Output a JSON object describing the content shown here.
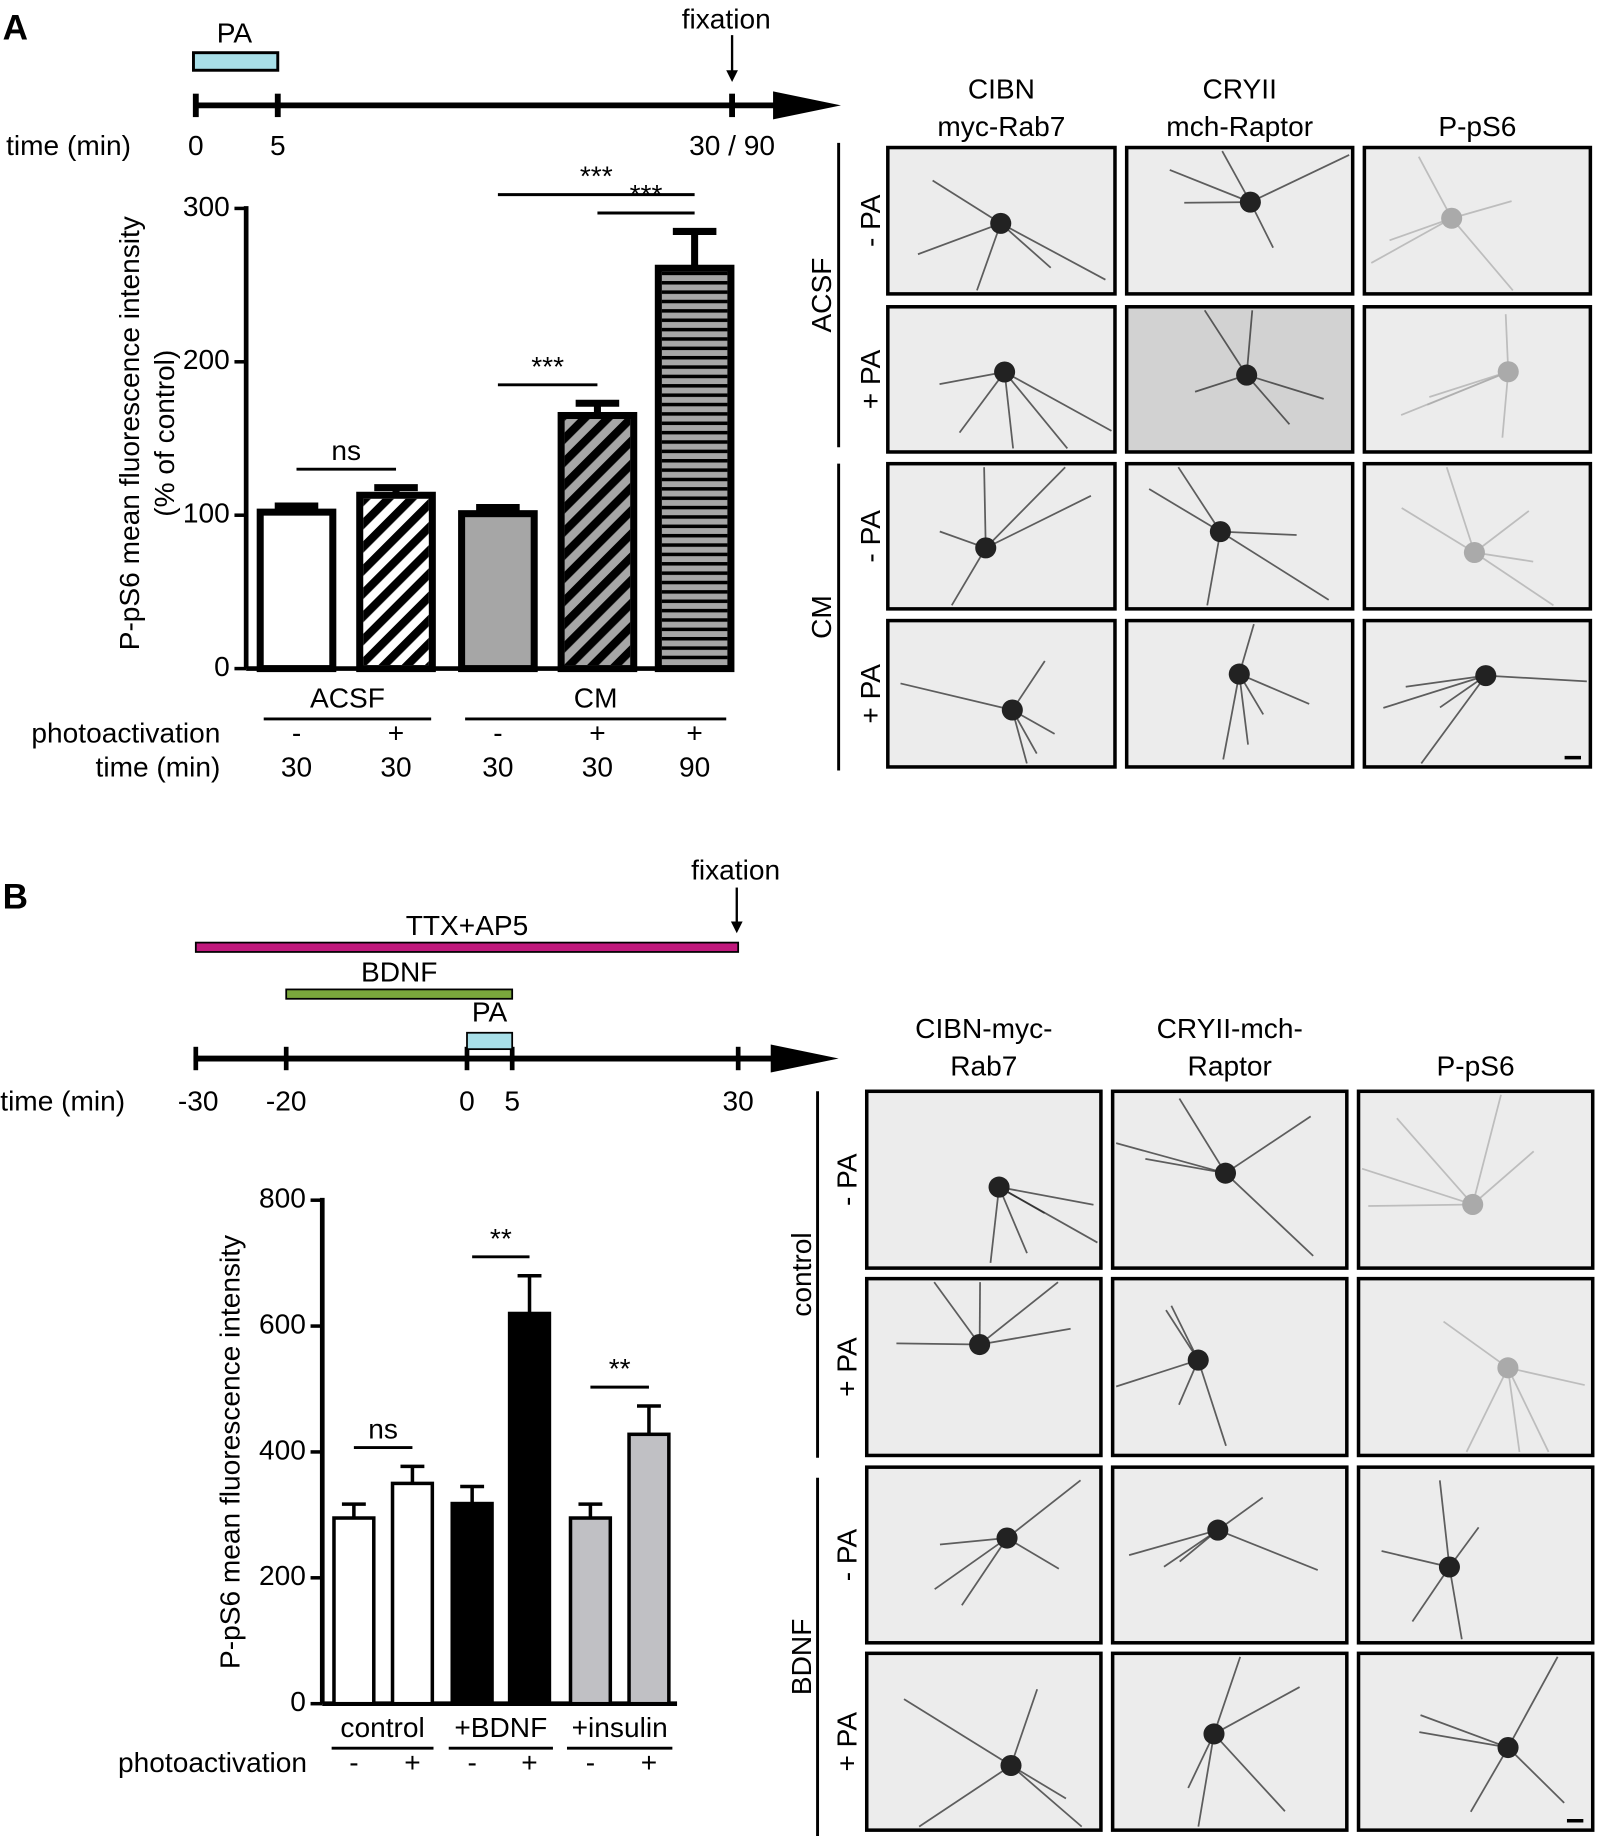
{
  "panel_labels": [
    "A",
    "B"
  ],
  "timelines": [
    {
      "axis_label": "time (min)",
      "ticks": [
        "0",
        "5",
        "30 / 90"
      ],
      "bars": [
        {
          "label": "PA",
          "color": "#a8dfe8"
        }
      ],
      "marker": "fixation"
    },
    {
      "axis_label": "time (min)",
      "ticks": [
        -30,
        -20,
        0,
        5,
        30
      ],
      "bars": [
        {
          "label": "TTX+AP5",
          "start": -30,
          "end": 30,
          "color": "#c0187c"
        },
        {
          "label": "BDNF",
          "start": -20,
          "end": 5,
          "color": "#7aa73c"
        },
        {
          "label": "PA",
          "start": 0,
          "end": 5,
          "color": "#a8dfe8"
        }
      ],
      "marker": "fixation"
    }
  ],
  "chart_data": [
    {
      "type": "bar",
      "ylabel": [
        "P-pS6 mean fluorescence intensity",
        "(% of control)"
      ],
      "values": [
        102,
        113,
        101,
        165,
        261
      ],
      "errors": [
        4,
        5,
        4,
        8,
        24
      ],
      "colors": [
        "#ffffff",
        "#ffffff",
        "#a6a6a6",
        "#a6a6a6",
        "#a6a6a6"
      ],
      "patterns": [
        "none",
        "diagonal",
        "none",
        "diagonal",
        "horizontal"
      ],
      "ylim": [
        0,
        300
      ],
      "yticks": [
        0,
        100,
        200,
        300
      ],
      "groups": [
        "ACSF",
        "CM"
      ],
      "rows": [
        {
          "label": "photoactivation",
          "values": [
            "-",
            "+",
            "-",
            "+",
            "+"
          ]
        },
        {
          "label": "time (min)",
          "values": [
            "30",
            "30",
            "30",
            "30",
            "90"
          ]
        }
      ],
      "brackets": [
        {
          "label": "ns",
          "from": 0,
          "to": 1
        },
        {
          "label": "***",
          "from": 2,
          "to": 3
        },
        {
          "label": "***",
          "from": 3,
          "to": 4
        },
        {
          "label": "***",
          "from": 2,
          "to": 4
        }
      ]
    },
    {
      "type": "bar",
      "ylabel": [
        "P-pS6 mean fluorescence intensity"
      ],
      "values": [
        295,
        350,
        318,
        620,
        295,
        428
      ],
      "errors": [
        22,
        27,
        27,
        60,
        22,
        45
      ],
      "colors": [
        "#ffffff",
        "#ffffff",
        "#000000",
        "#000000",
        "#c0c0c4",
        "#c0c0c4"
      ],
      "patterns": [
        "none",
        "none",
        "none",
        "none",
        "none",
        "none"
      ],
      "ylim": [
        0,
        800
      ],
      "yticks": [
        0,
        200,
        400,
        600,
        800
      ],
      "groups": [
        "control",
        "+BDNF",
        "+insulin"
      ],
      "rows": [
        {
          "label": "photoactivation",
          "values": [
            "-",
            "+",
            "-",
            "+",
            "-",
            "+"
          ]
        }
      ],
      "brackets": [
        {
          "label": "ns",
          "from": 0,
          "to": 1
        },
        {
          "label": "**",
          "from": 2,
          "to": 3
        },
        {
          "label": "**",
          "from": 4,
          "to": 5
        }
      ]
    }
  ],
  "micrographs": [
    {
      "columns": [
        [
          "CIBN",
          "myc-Rab7"
        ],
        [
          "CRYII",
          "mch-Raptor"
        ],
        [
          "P-pS6"
        ]
      ],
      "groups": [
        {
          "label": "ACSF",
          "rows": [
            "- PA",
            "+ PA"
          ]
        },
        {
          "label": "CM",
          "rows": [
            "- PA",
            "+ PA"
          ]
        }
      ]
    },
    {
      "columns": [
        [
          "CIBN-myc-",
          "Rab7"
        ],
        [
          "CRYII-mch-",
          "Raptor"
        ],
        [
          "P-pS6"
        ]
      ],
      "groups": [
        {
          "label": "control",
          "rows": [
            "- PA",
            "+ PA"
          ]
        },
        {
          "label": "BDNF",
          "rows": [
            "- PA",
            "+ PA"
          ]
        }
      ]
    }
  ]
}
